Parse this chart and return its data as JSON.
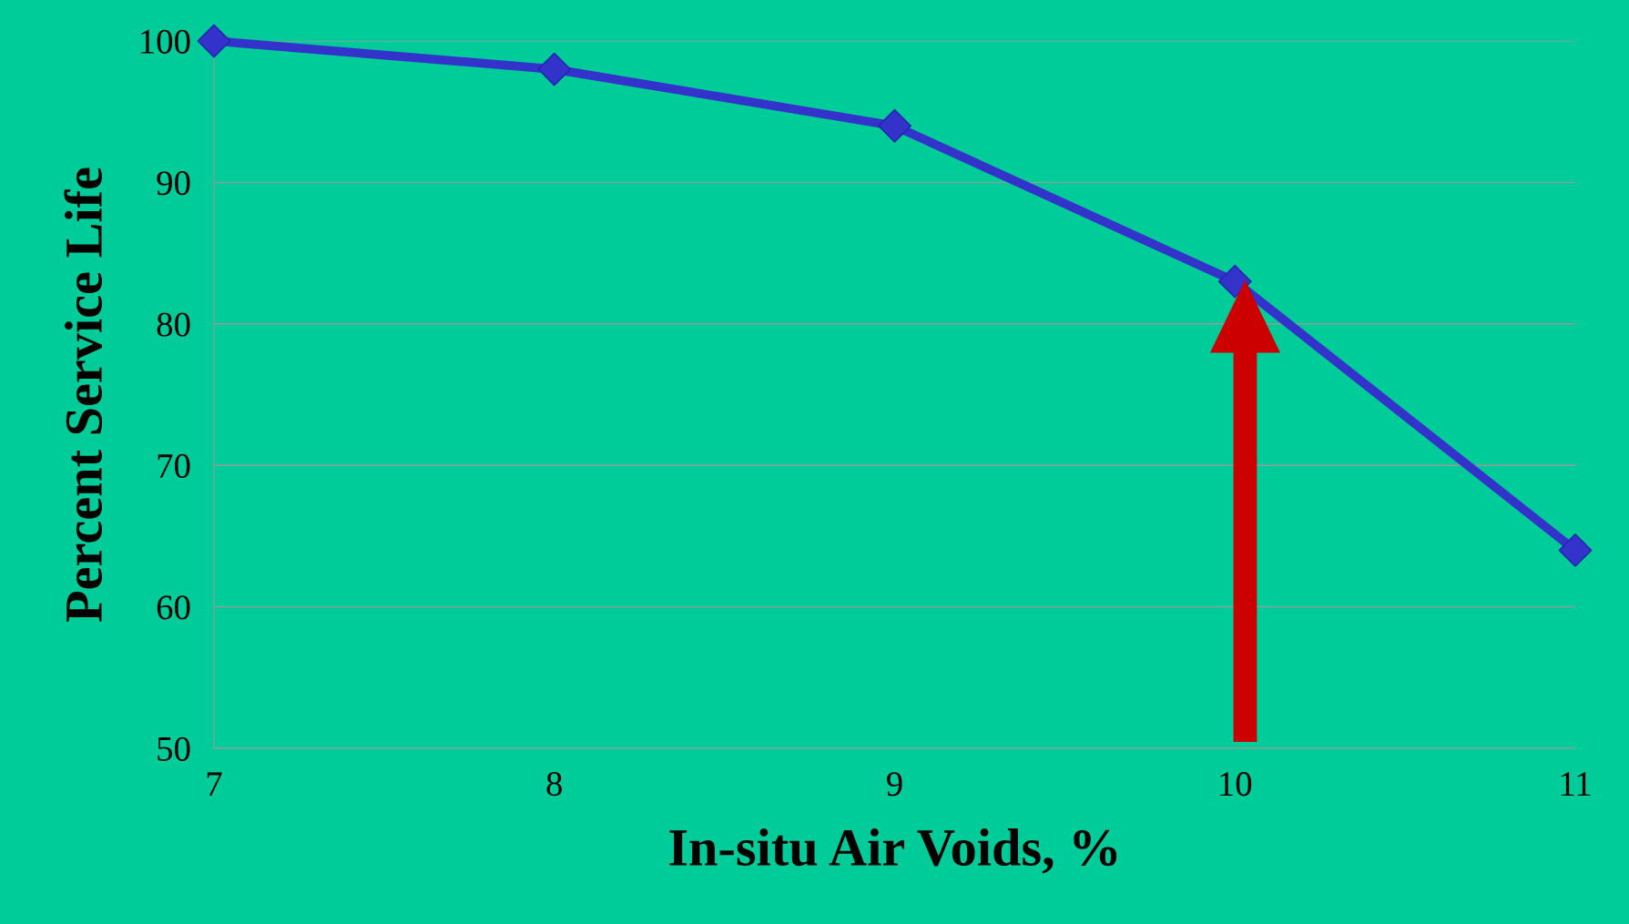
{
  "chart_data": {
    "type": "line",
    "xlabel": "In-situ Air Voids, %",
    "ylabel": "Percent Service Life",
    "x": [
      7,
      8,
      9,
      10,
      11
    ],
    "series": [
      {
        "color": "#3333cc",
        "values": [
          100,
          98,
          94,
          83,
          64
        ]
      }
    ],
    "xlim": [
      7,
      11
    ],
    "xticks": [
      7,
      8,
      9,
      10,
      11
    ],
    "ylim": [
      50,
      100
    ],
    "yticks": [
      50,
      60,
      70,
      80,
      90,
      100
    ],
    "grid": "y",
    "marker": "diamond",
    "line_style": "solid",
    "legend": false
  }
}
